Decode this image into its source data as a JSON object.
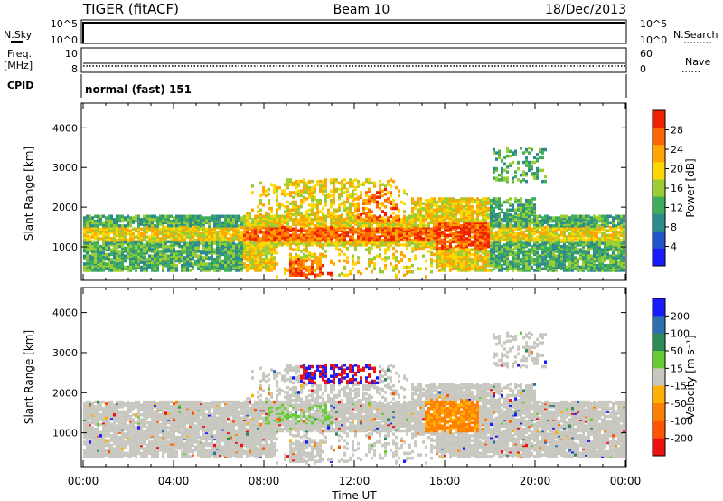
{
  "header": {
    "station": "TIGER (fitACF)",
    "beam": "Beam 10",
    "date": "18/Dec/2013"
  },
  "nsky_panel": {
    "left_label": "N.Sky",
    "right_label": "N.Search",
    "left_ticks": [
      "10^5",
      "10^0"
    ],
    "right_ticks": [
      "10^5",
      "10^0"
    ]
  },
  "freq_panel": {
    "left_label_1": "Freq.",
    "left_label_2": "[MHz]",
    "right_label": "Nave",
    "left_ticks": [
      "10",
      "8"
    ],
    "right_ticks": [
      "60",
      "0"
    ]
  },
  "cpid_panel": {
    "label": "CPID",
    "text": "normal (fast) 151"
  },
  "x_axis": {
    "ticks": [
      "00:00",
      "04:00",
      "08:00",
      "12:00",
      "16:00",
      "20:00",
      "00:00"
    ],
    "title": "Time UT"
  },
  "colors": {
    "power_scale": [
      "#1a1aff",
      "#2255cc",
      "#2e8b8b",
      "#3fae5a",
      "#9acd32",
      "#ffd700",
      "#ffa500",
      "#ff6600",
      "#ee2200"
    ],
    "velocity_scale": [
      "#1a1aff",
      "#2e6fb0",
      "#2e8b57",
      "#66cc33",
      "#c8c8c0",
      "#ffb000",
      "#ff8000",
      "#ff5500",
      "#ee1111"
    ]
  },
  "chart_data": [
    {
      "type": "heatmap",
      "panel": "power",
      "xlabel": "",
      "ylabel": "Slant Range [km]",
      "xlim": [
        "00:00",
        "24:00"
      ],
      "ylim": [
        180,
        4600
      ],
      "yticks": [
        "1000",
        "2000",
        "3000",
        "4000"
      ],
      "colorbar": {
        "label": "Power [dB]",
        "ticks": [
          "28",
          "24",
          "20",
          "16",
          "12",
          "8",
          "4"
        ]
      },
      "echo_regions": [
        {
          "t_start": 0.0,
          "t_end": 24.0,
          "range_start": 300,
          "range_end": 1700
        },
        {
          "t_start": 6.5,
          "t_end": 18.5,
          "range_start": 1000,
          "range_end": 2900
        },
        {
          "t_start": 15.0,
          "t_end": 20.0,
          "range_start": 1700,
          "range_end": 3500
        }
      ]
    },
    {
      "type": "heatmap",
      "panel": "velocity",
      "xlabel": "Time UT",
      "ylabel": "Slant Range [km]",
      "xlim": [
        "00:00",
        "24:00"
      ],
      "ylim": [
        180,
        4600
      ],
      "yticks": [
        "1000",
        "2000",
        "3000",
        "4000"
      ],
      "colorbar": {
        "label": "Velocity [m s⁻¹]",
        "ticks": [
          "200",
          "100",
          "50",
          "15",
          "-15",
          "-50",
          "-100",
          "-200"
        ]
      },
      "echo_regions": [
        {
          "t_start": 0.0,
          "t_end": 24.0,
          "range_start": 300,
          "range_end": 1800
        },
        {
          "t_start": 9.5,
          "t_end": 13.0,
          "range_start": 2200,
          "range_end": 2800
        },
        {
          "t_start": 15.0,
          "t_end": 17.5,
          "range_start": 1000,
          "range_end": 1800
        }
      ]
    }
  ]
}
